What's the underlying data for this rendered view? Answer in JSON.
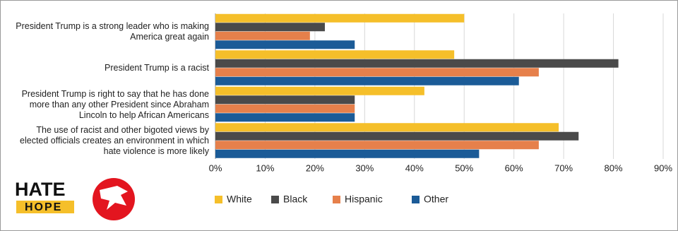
{
  "chart_data": {
    "type": "barh",
    "categories": [
      "President Trump is a strong leader who is making America great again",
      "President Trump is a racist",
      "President Trump is right to say that he has done more than any other President since Abraham Lincoln to help African Americans",
      "The use of racist and other bigoted views by elected officials creates an environment in which hate violence is more likely"
    ],
    "series": [
      {
        "name": "White",
        "color": "#f5bf2a",
        "values": [
          50,
          48,
          42,
          69
        ]
      },
      {
        "name": "Black",
        "color": "#4a4a4a",
        "values": [
          22,
          81,
          28,
          73
        ]
      },
      {
        "name": "Hispanic",
        "color": "#e6804b",
        "values": [
          19,
          65,
          28,
          65
        ]
      },
      {
        "name": "Other",
        "color": "#1b5b97",
        "values": [
          28,
          61,
          28,
          53
        ]
      }
    ],
    "xlim": [
      0,
      90
    ],
    "xticks": [
      {
        "value": 0,
        "label": "0%"
      },
      {
        "value": 10,
        "label": "10%"
      },
      {
        "value": 20,
        "label": "20%"
      },
      {
        "value": 30,
        "label": "30%"
      },
      {
        "value": 40,
        "label": "40%"
      },
      {
        "value": 50,
        "label": "50%"
      },
      {
        "value": 60,
        "label": "60%"
      },
      {
        "value": 70,
        "label": "70%"
      },
      {
        "value": 80,
        "label": "80%"
      },
      {
        "value": 90,
        "label": "90%"
      }
    ],
    "grid": true,
    "legend": "bottom"
  },
  "branding": {
    "hate": "HATE",
    "hope": "HOPE"
  }
}
